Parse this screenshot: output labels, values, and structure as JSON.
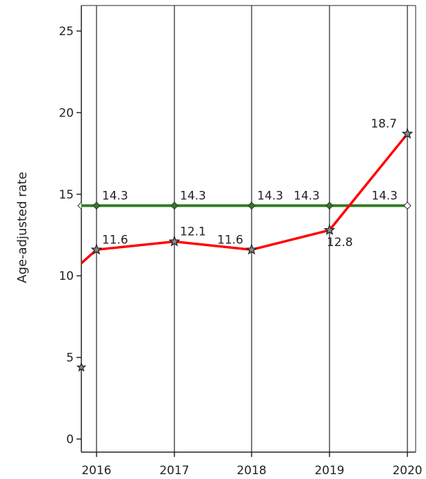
{
  "chart_data": {
    "type": "line",
    "title": "",
    "xlabel": "",
    "ylabel": "Age-adjusted rate",
    "x": [
      "2016",
      "2017",
      "2018",
      "2019",
      "2020"
    ],
    "ylim": [
      0,
      26
    ],
    "yticks": [
      0,
      5,
      10,
      15,
      20,
      25
    ],
    "grid": "vertical",
    "series": [
      {
        "color": "#2e7d1f",
        "marker": "diamond",
        "values": [
          14.3,
          14.3,
          14.3,
          14.3,
          14.3
        ],
        "labels": [
          "14.3",
          "14.3",
          "14.3",
          "14.3",
          "14.3"
        ]
      },
      {
        "color": "#ff0000",
        "marker": "star",
        "values": [
          11.6,
          12.1,
          11.6,
          12.8,
          18.7
        ],
        "labels": [
          "11.6",
          "12.1",
          "11.6",
          "12.8",
          "18.7"
        ]
      }
    ]
  }
}
